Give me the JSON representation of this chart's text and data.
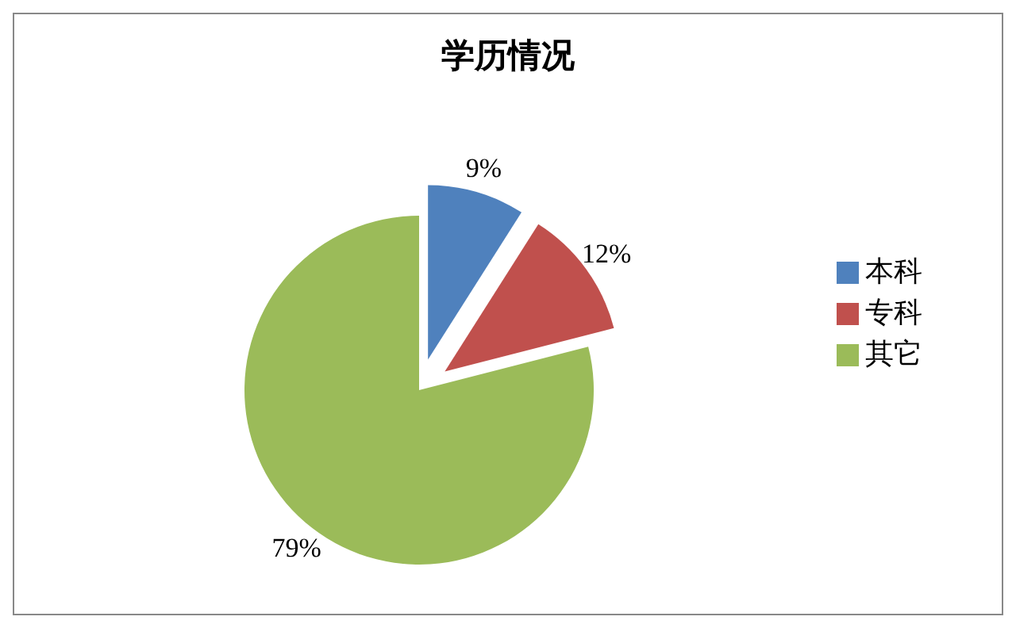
{
  "chart_data": {
    "type": "pie",
    "title": "学历情况",
    "categories": [
      "本科",
      "专科",
      "其它"
    ],
    "values": [
      9,
      12,
      79
    ],
    "colors": [
      "#4f81bd",
      "#c0504d",
      "#9bbb59"
    ],
    "value_labels": [
      "9%",
      "12%",
      "79%"
    ],
    "legend": "right"
  }
}
